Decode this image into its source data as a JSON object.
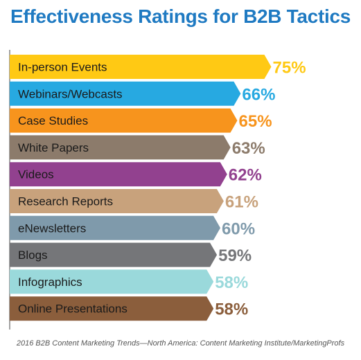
{
  "title": "Effectiveness Ratings for B2B Tactics",
  "source": "2016 B2B Content Marketing Trends—North America: Content Marketing Institute/MarketingProfs",
  "colors": {
    "title": "#1f7ac2",
    "axis": "#444444",
    "source_text": "#555555"
  },
  "chart_data": {
    "type": "bar",
    "orientation": "horizontal",
    "categories": [
      "In-person Events",
      "Webinars/Webcasts",
      "Case Studies",
      "White Papers",
      "Videos",
      "Research Reports",
      "eNewsletters",
      "Blogs",
      "Infographics",
      "Online Presentations"
    ],
    "values": [
      75,
      66,
      65,
      63,
      62,
      61,
      60,
      59,
      58,
      58
    ],
    "value_labels": [
      "75%",
      "66%",
      "65%",
      "63%",
      "62%",
      "61%",
      "60%",
      "59%",
      "58%",
      "58%"
    ],
    "colors": [
      "#ffc914",
      "#27a9e1",
      "#f7941d",
      "#8c7b6b",
      "#92418f",
      "#c8a27c",
      "#7f9aab",
      "#757679",
      "#9ad9db",
      "#8b5e3c"
    ],
    "label_colors": [
      "#ffc914",
      "#27a9e1",
      "#f7941d",
      "#8c7b6b",
      "#92418f",
      "#c8a27c",
      "#7f9aab",
      "#757679",
      "#9ad9db",
      "#8b5e3c"
    ],
    "title": "Effectiveness Ratings for B2B Tactics",
    "xlabel": "",
    "ylabel": "",
    "grid": false,
    "legend": "none"
  }
}
